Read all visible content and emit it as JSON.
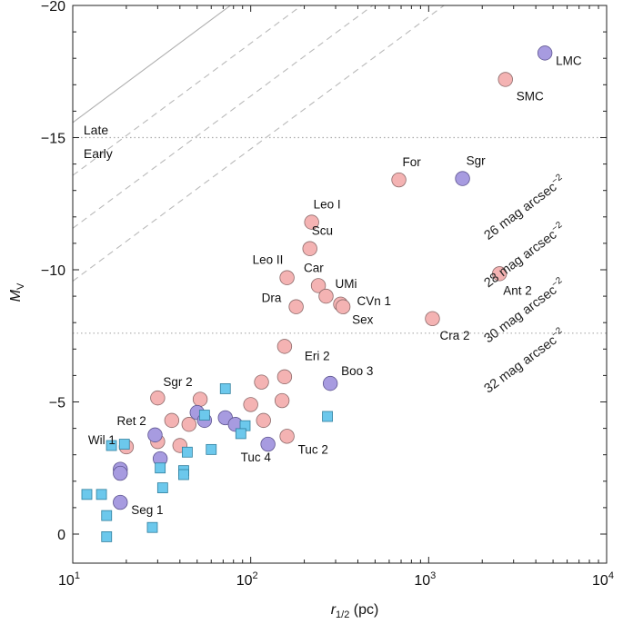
{
  "chart_data": {
    "type": "scatter",
    "title": "",
    "xlabel": {
      "main": "r",
      "sub": "1/2",
      "unit": " (pc)"
    },
    "ylabel": {
      "main": "M",
      "sub": "V"
    },
    "xscale": "log",
    "xlim": [
      10,
      10000
    ],
    "ylim": [
      1.1,
      -20
    ],
    "x_ticks": [
      {
        "value": 10,
        "base": "10",
        "exp": "1"
      },
      {
        "value": 100,
        "base": "10",
        "exp": "2"
      },
      {
        "value": 1000,
        "base": "10",
        "exp": "3"
      },
      {
        "value": 10000,
        "base": "10",
        "exp": "4"
      }
    ],
    "y_ticks": [
      {
        "value": 0,
        "label": "0"
      },
      {
        "value": -5,
        "label": "−5"
      },
      {
        "value": -10,
        "label": "−10"
      },
      {
        "value": -15,
        "label": "−15"
      },
      {
        "value": -20,
        "label": "−20"
      }
    ],
    "reference_lines": [
      {
        "value": -15.0,
        "style": "dotted"
      },
      {
        "value": -7.6,
        "style": "dotted"
      }
    ],
    "region_labels": [
      {
        "text": "Late",
        "x": 11.5,
        "y": -15.3
      },
      {
        "text": "Early",
        "x": 11.5,
        "y": -14.4
      }
    ],
    "surface_brightness_lines": [
      {
        "name": "26 mag arcsec",
        "sup": "−2",
        "mu": 26,
        "style": "solid",
        "label_x": 5900,
        "label_y": -13.3
      },
      {
        "name": "28 mag arcsec",
        "sup": "−2",
        "mu": 28,
        "style": "dashed",
        "label_x": 5900,
        "label_y": -11.5
      },
      {
        "name": "30 mag arcsec",
        "sup": "−2",
        "mu": 30,
        "style": "dashed",
        "label_x": 5900,
        "label_y": -9.4
      },
      {
        "name": "32 mag arcsec",
        "sup": "−2",
        "mu": 32,
        "style": "dashed",
        "label_x": 5900,
        "label_y": -7.5
      }
    ],
    "series": [
      {
        "name": "Early-type (pink)",
        "color": "#f4b3b3",
        "stroke": "#8c6a6a",
        "marker": "circle",
        "points": [
          {
            "x": 2700,
            "y": -17.2,
            "label": "SMC"
          },
          {
            "x": 680,
            "y": -13.4,
            "label": "For"
          },
          {
            "x": 220,
            "y": -11.8,
            "label": "Leo I"
          },
          {
            "x": 215,
            "y": -10.8,
            "label": "Scu"
          },
          {
            "x": 160,
            "y": -9.7,
            "label": "Leo II"
          },
          {
            "x": 240,
            "y": -9.4,
            "label": "Car"
          },
          {
            "x": 180,
            "y": -8.6,
            "label": "Dra"
          },
          {
            "x": 265,
            "y": -9.0,
            "label": "UMi"
          },
          {
            "x": 320,
            "y": -8.7,
            "label": "CVn 1"
          },
          {
            "x": 330,
            "y": -8.6,
            "label": "Sex"
          },
          {
            "x": 2500,
            "y": -9.85,
            "label": "Ant 2"
          },
          {
            "x": 1050,
            "y": -8.15,
            "label": "Cra 2"
          },
          {
            "x": 155,
            "y": -7.1,
            "label": "Eri 2"
          },
          {
            "x": 30,
            "y": -5.15,
            "label": "Sgr 2"
          },
          {
            "x": 20,
            "y": -3.3,
            "label": "Wil 1"
          },
          {
            "x": 52,
            "y": -5.1,
            "label": ""
          },
          {
            "x": 115,
            "y": -5.75,
            "label": ""
          },
          {
            "x": 155,
            "y": -5.95,
            "label": ""
          },
          {
            "x": 100,
            "y": -4.9,
            "label": ""
          },
          {
            "x": 150,
            "y": -5.05,
            "label": ""
          },
          {
            "x": 36,
            "y": -4.3,
            "label": ""
          },
          {
            "x": 45,
            "y": -4.15,
            "label": ""
          },
          {
            "x": 118,
            "y": -4.3,
            "label": ""
          },
          {
            "x": 30,
            "y": -3.5,
            "label": ""
          },
          {
            "x": 40,
            "y": -3.35,
            "label": ""
          },
          {
            "x": 160,
            "y": -3.7,
            "label": ""
          }
        ]
      },
      {
        "name": "Late-type (purple)",
        "color": "#a79be0",
        "stroke": "#5e5590",
        "marker": "circle",
        "points": [
          {
            "x": 4500,
            "y": -18.2,
            "label": "LMC"
          },
          {
            "x": 1550,
            "y": -13.45,
            "label": "Sgr"
          },
          {
            "x": 280,
            "y": -5.7,
            "label": "Boo 3"
          },
          {
            "x": 29,
            "y": -3.75,
            "label": "Ret 2"
          },
          {
            "x": 125,
            "y": -3.4,
            "label": "Tuc 4"
          },
          {
            "x": 18.5,
            "y": -1.2,
            "label": "Seg 1"
          },
          {
            "x": 50,
            "y": -4.6,
            "label": ""
          },
          {
            "x": 55,
            "y": -4.3,
            "label": ""
          },
          {
            "x": 72,
            "y": -4.4,
            "label": ""
          },
          {
            "x": 82,
            "y": -4.15,
            "label": ""
          },
          {
            "x": 31,
            "y": -2.85,
            "label": ""
          },
          {
            "x": 18.5,
            "y": -2.45,
            "label": ""
          },
          {
            "x": 18.5,
            "y": -2.3,
            "label": ""
          }
        ]
      },
      {
        "name": "Squares (cyan)",
        "color": "#6cc8ec",
        "stroke": "#2f7f9e",
        "marker": "square",
        "points": [
          {
            "x": 72,
            "y": -5.5,
            "label": ""
          },
          {
            "x": 55,
            "y": -4.5,
            "label": ""
          },
          {
            "x": 93,
            "y": -4.1,
            "label": ""
          },
          {
            "x": 270,
            "y": -4.45,
            "label": ""
          },
          {
            "x": 88,
            "y": -3.8,
            "label": ""
          },
          {
            "x": 16.5,
            "y": -3.35,
            "label": ""
          },
          {
            "x": 19.5,
            "y": -3.4,
            "label": ""
          },
          {
            "x": 44,
            "y": -3.1,
            "label": ""
          },
          {
            "x": 60,
            "y": -3.2,
            "label": ""
          },
          {
            "x": 31,
            "y": -2.5,
            "label": ""
          },
          {
            "x": 42,
            "y": -2.4,
            "label": ""
          },
          {
            "x": 42,
            "y": -2.25,
            "label": ""
          },
          {
            "x": 32,
            "y": -1.75,
            "label": ""
          },
          {
            "x": 12,
            "y": -1.5,
            "label": ""
          },
          {
            "x": 14.5,
            "y": -1.5,
            "label": ""
          },
          {
            "x": 15.5,
            "y": -0.7,
            "label": ""
          },
          {
            "x": 28,
            "y": -0.25,
            "label": ""
          },
          {
            "x": 15.5,
            "y": 0.1,
            "label": ""
          }
        ]
      }
    ]
  }
}
